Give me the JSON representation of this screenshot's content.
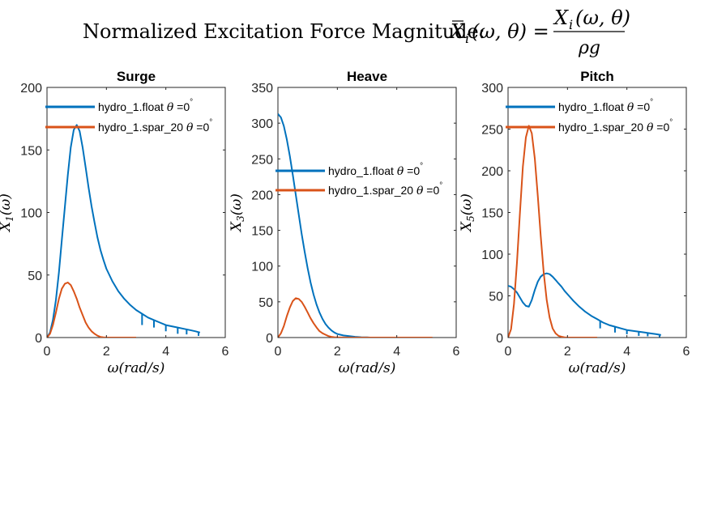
{
  "figure": {
    "suptitle": {
      "prefix": "Normalized Excitation Force Magnitude: ",
      "lhs_base": "X",
      "lhs_sub": "i",
      "lhs_args": "(ω, θ) = ",
      "num_base": "X",
      "num_sub": "i",
      "num_args": "(ω, θ)",
      "den": "ρg"
    },
    "colors": {
      "series_1": "#0072BD",
      "series_2": "#D95319",
      "axes": "#262626"
    }
  },
  "chart_data": [
    {
      "type": "line",
      "title": "Surge",
      "xlabel": "ω(rad/s)",
      "ylabel_base": "X",
      "ylabel_sub": "1",
      "ylabel_args": "(ω)",
      "xlim": [
        0,
        6
      ],
      "ylim": [
        0,
        200
      ],
      "xticks": [
        0,
        2,
        4,
        6
      ],
      "yticks": [
        0,
        50,
        100,
        150,
        200
      ],
      "grid": false,
      "legend_placement": "top-left",
      "series": [
        {
          "name": "hydro_1.float θ =0°",
          "color": "#0072BD",
          "x": [
            0,
            0.1,
            0.2,
            0.3,
            0.4,
            0.5,
            0.6,
            0.7,
            0.8,
            0.9,
            1.0,
            1.1,
            1.2,
            1.3,
            1.4,
            1.5,
            1.6,
            1.7,
            1.8,
            1.9,
            2.0,
            2.2,
            2.4,
            2.6,
            2.8,
            3.0,
            3.2,
            3.4,
            3.6,
            3.8,
            4.0,
            4.2,
            4.4,
            4.6,
            4.8,
            5.0,
            5.15
          ],
          "y": [
            0,
            4,
            14,
            30,
            52,
            78,
            104,
            130,
            152,
            166,
            170,
            165,
            152,
            136,
            120,
            105,
            92,
            80,
            70,
            62,
            55,
            45,
            37,
            31,
            26,
            22,
            19,
            16,
            14,
            12,
            10,
            9,
            8,
            7,
            6,
            5,
            4
          ],
          "dips": [
            [
              3.2,
              9
            ],
            [
              3.6,
              6
            ],
            [
              4.0,
              5
            ],
            [
              4.4,
              5
            ],
            [
              4.7,
              4
            ],
            [
              5.1,
              3
            ]
          ]
        },
        {
          "name": "hydro_1.spar_20 θ =0°",
          "color": "#D95319",
          "x": [
            0,
            0.1,
            0.2,
            0.3,
            0.4,
            0.5,
            0.6,
            0.7,
            0.8,
            0.9,
            1.0,
            1.1,
            1.2,
            1.3,
            1.4,
            1.5,
            1.6,
            1.7,
            1.8,
            1.9,
            2.0,
            2.5,
            3.0
          ],
          "y": [
            0,
            3,
            10,
            20,
            31,
            39,
            43,
            44,
            42,
            37,
            31,
            24,
            18,
            12,
            8,
            5,
            3,
            1.5,
            0.5,
            0.2,
            0,
            0,
            0
          ]
        }
      ]
    },
    {
      "type": "line",
      "title": "Heave",
      "xlabel": "ω(rad/s)",
      "ylabel_base": "X",
      "ylabel_sub": "3",
      "ylabel_args": "(ω)",
      "xlim": [
        0,
        6
      ],
      "ylim": [
        0,
        350
      ],
      "xticks": [
        0,
        2,
        4,
        6
      ],
      "yticks": [
        0,
        50,
        100,
        150,
        200,
        250,
        300,
        350
      ],
      "grid": false,
      "legend_placement": "middle",
      "series": [
        {
          "name": "hydro_1.float θ =0°",
          "color": "#0072BD",
          "x": [
            0,
            0.1,
            0.2,
            0.3,
            0.4,
            0.5,
            0.6,
            0.7,
            0.8,
            0.9,
            1.0,
            1.1,
            1.2,
            1.3,
            1.4,
            1.5,
            1.6,
            1.7,
            1.8,
            1.9,
            2.0,
            2.2,
            2.4,
            2.6,
            2.8,
            3.0,
            3.1
          ],
          "y": [
            313,
            308,
            296,
            277,
            254,
            228,
            200,
            172,
            145,
            120,
            97,
            77,
            60,
            46,
            35,
            26,
            19,
            14,
            10,
            7,
            5,
            3,
            2,
            1,
            0.5,
            0.2,
            0
          ]
        },
        {
          "name": "hydro_1.spar_20 θ =0°",
          "color": "#D95319",
          "x": [
            0,
            0.1,
            0.2,
            0.3,
            0.4,
            0.5,
            0.6,
            0.7,
            0.8,
            0.9,
            1.0,
            1.1,
            1.2,
            1.3,
            1.4,
            1.5,
            1.6,
            1.7,
            1.8,
            1.9,
            2.0,
            2.5,
            3.0,
            4.0,
            5.2
          ],
          "y": [
            0,
            6,
            16,
            30,
            42,
            51,
            55,
            54,
            50,
            43,
            35,
            27,
            20,
            14,
            9,
            6,
            4,
            2,
            1,
            0.5,
            0.2,
            0,
            0,
            0,
            0
          ]
        }
      ]
    },
    {
      "type": "line",
      "title": "Pitch",
      "xlabel": "ω(rad/s)",
      "ylabel_base": "X",
      "ylabel_sub": "5",
      "ylabel_args": "(ω)",
      "xlim": [
        0,
        6
      ],
      "ylim": [
        0,
        300
      ],
      "xticks": [
        0,
        2,
        4,
        6
      ],
      "yticks": [
        0,
        50,
        100,
        150,
        200,
        250,
        300
      ],
      "grid": false,
      "legend_placement": "top-left",
      "series": [
        {
          "name": "hydro_1.float θ =0°",
          "color": "#0072BD",
          "x": [
            0,
            0.1,
            0.2,
            0.3,
            0.4,
            0.5,
            0.6,
            0.7,
            0.8,
            0.9,
            1.0,
            1.1,
            1.2,
            1.3,
            1.4,
            1.5,
            1.6,
            1.7,
            1.8,
            1.9,
            2.0,
            2.2,
            2.4,
            2.6,
            2.8,
            3.0,
            3.2,
            3.4,
            3.6,
            3.8,
            4.0,
            4.2,
            4.4,
            4.6,
            4.8,
            5.0,
            5.15
          ],
          "y": [
            62,
            61,
            58,
            54,
            48,
            42,
            38,
            37,
            45,
            57,
            67,
            73,
            76,
            77,
            76,
            73,
            69,
            65,
            61,
            56,
            52,
            44,
            37,
            31,
            26,
            22,
            18,
            15,
            13,
            11,
            9,
            8,
            7,
            6,
            5,
            4,
            3
          ],
          "dips": [
            [
              3.1,
              9
            ],
            [
              3.6,
              7
            ],
            [
              4.0,
              5
            ],
            [
              4.4,
              5
            ],
            [
              4.7,
              4
            ],
            [
              5.1,
              3
            ]
          ]
        },
        {
          "name": "hydro_1.spar_20 θ =0°",
          "color": "#D95319",
          "x": [
            0,
            0.1,
            0.2,
            0.3,
            0.4,
            0.5,
            0.6,
            0.7,
            0.8,
            0.9,
            1.0,
            1.1,
            1.2,
            1.3,
            1.4,
            1.5,
            1.6,
            1.7,
            1.8,
            1.9,
            2.0,
            2.5,
            3.0
          ],
          "y": [
            0,
            10,
            40,
            90,
            150,
            205,
            240,
            254,
            245,
            215,
            170,
            122,
            78,
            45,
            24,
            11,
            5,
            2,
            1,
            0.3,
            0,
            0,
            0
          ]
        }
      ]
    }
  ]
}
